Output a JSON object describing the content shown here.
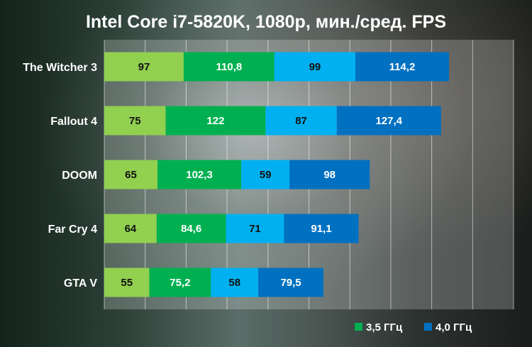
{
  "chart_data": {
    "type": "bar",
    "orientation": "horizontal",
    "stacked": true,
    "title": "Intel Core i7-5820K, 1080p, мин./сред. FPS",
    "categories": [
      "The Witcher 3",
      "Fallout 4",
      "DOOM",
      "Far Cry 4",
      "GTA V"
    ],
    "series": [
      {
        "values": [
          97,
          75,
          65,
          64,
          55
        ],
        "color": "#92d050",
        "label_color": "#111111"
      },
      {
        "values": [
          110.8,
          122,
          102.3,
          84.6,
          75.2
        ],
        "color": "#00b050",
        "label_color": "#ffffff"
      },
      {
        "values": [
          99,
          87,
          59,
          71,
          58
        ],
        "color": "#00b0f0",
        "label_color": "#111111"
      },
      {
        "values": [
          114.2,
          127.4,
          98,
          91.1,
          79.5
        ],
        "color": "#0070c0",
        "label_color": "#ffffff"
      }
    ],
    "value_labels": [
      [
        "97",
        "75",
        "65",
        "64",
        "55"
      ],
      [
        "110,8",
        "122",
        "102,3",
        "84,6",
        "75,2"
      ],
      [
        "99",
        "87",
        "59",
        "71",
        "58"
      ],
      [
        "114,2",
        "127,4",
        "98",
        "91,1",
        "79,5"
      ]
    ],
    "legend": [
      {
        "label": "3,5 ГГц",
        "color": "#00b050"
      },
      {
        "label": "4,0 ГГц",
        "color": "#0070c0"
      }
    ],
    "legend_position": "bottom-right",
    "xlim": [
      0,
      500
    ],
    "grid": true
  }
}
